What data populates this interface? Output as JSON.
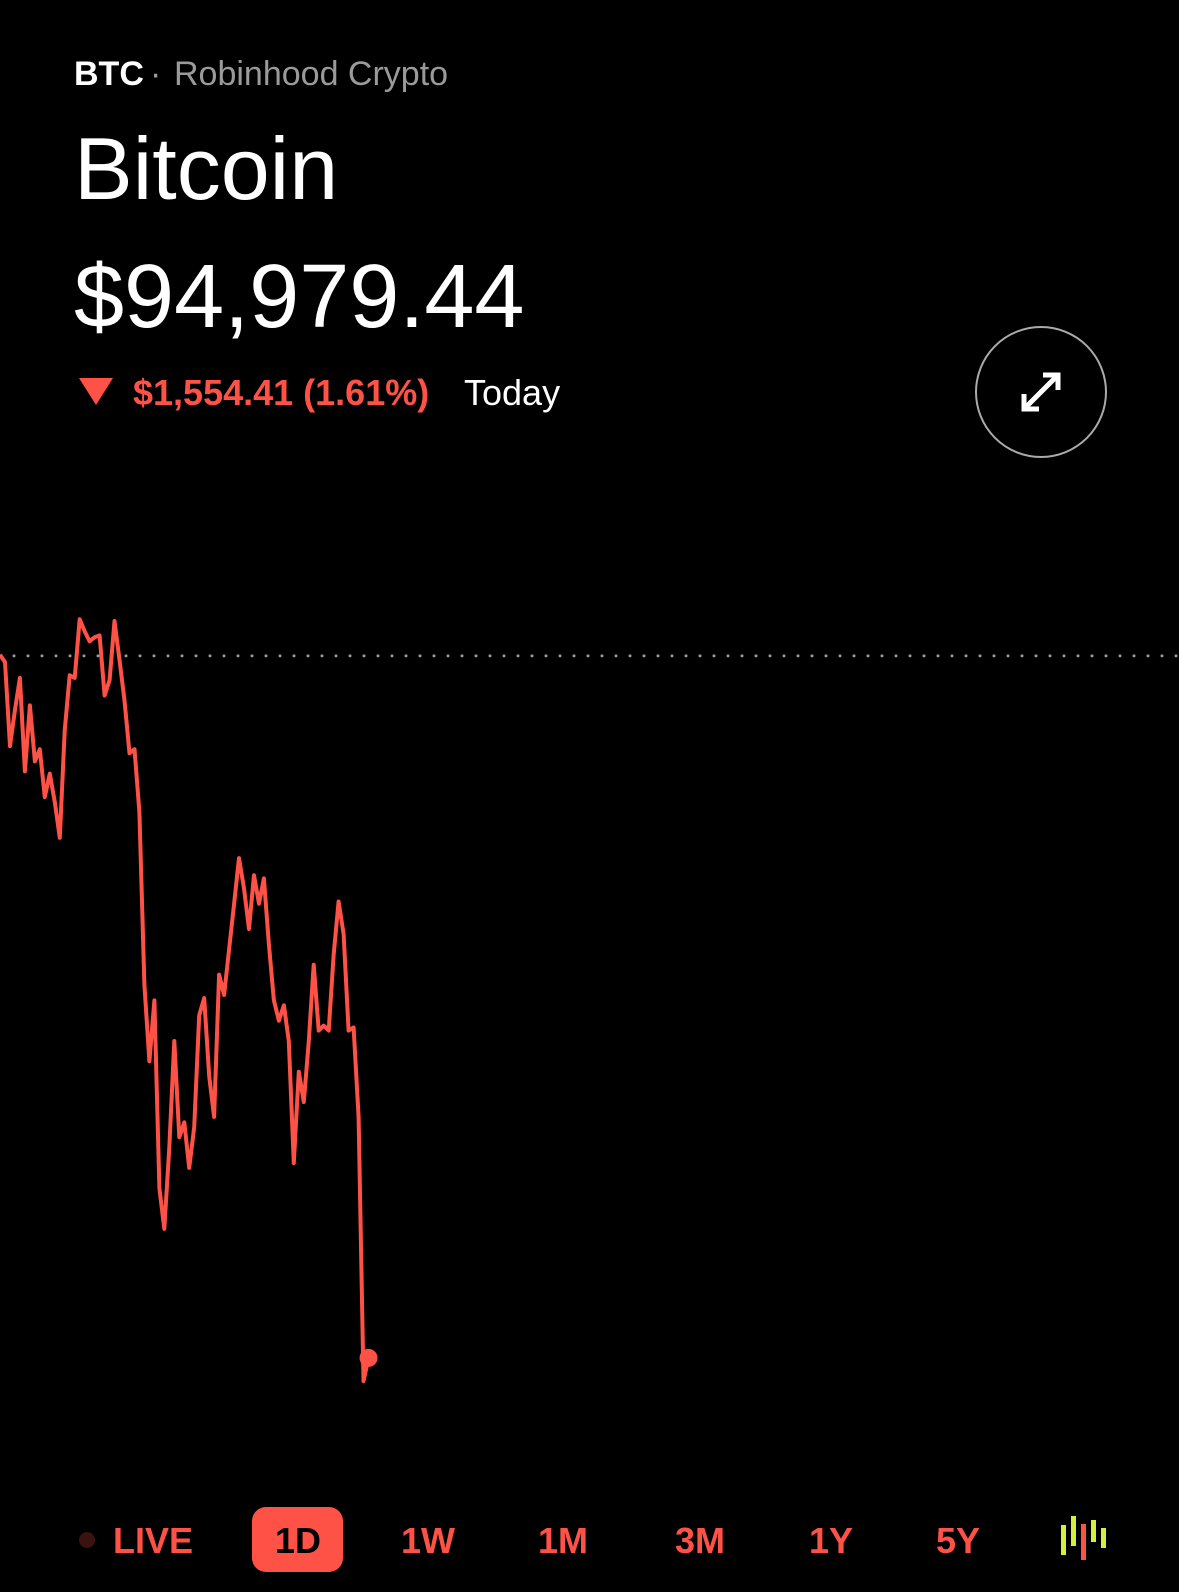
{
  "header": {
    "ticker": "BTC",
    "separator": "·",
    "exchange": "Robinhood Crypto",
    "name": "Bitcoin",
    "price": "$94,979.44",
    "change": "$1,554.41 (1.61%)",
    "period": "Today"
  },
  "chart_data": {
    "type": "line",
    "color": "#ff5247",
    "reference": 96533.85,
    "ylim": [
      94837.5,
      96637.5
    ],
    "values": [
      96536,
      96520,
      96334,
      96413,
      96485,
      96278,
      96424,
      96300,
      96327,
      96221,
      96273,
      96210,
      96131,
      96368,
      96491,
      96485,
      96615,
      96588,
      96566,
      96575,
      96579,
      96446,
      96480,
      96611,
      96525,
      96435,
      96318,
      96327,
      96188,
      95805,
      95636,
      95771,
      95355,
      95265,
      95445,
      95681,
      95468,
      95501,
      95400,
      95490,
      95738,
      95776,
      95603,
      95513,
      95828,
      95783,
      95884,
      95985,
      96086,
      96019,
      95929,
      96048,
      95985,
      96041,
      95895,
      95771,
      95726,
      95760,
      95681,
      95411,
      95613,
      95546,
      95681,
      95850,
      95704,
      95715,
      95704,
      95873,
      95990,
      95918,
      95704,
      95711,
      95513,
      94928,
      94979.44
    ]
  },
  "timeframes": [
    "LIVE",
    "1D",
    "1W",
    "1M",
    "3M",
    "1Y",
    "5Y"
  ]
}
